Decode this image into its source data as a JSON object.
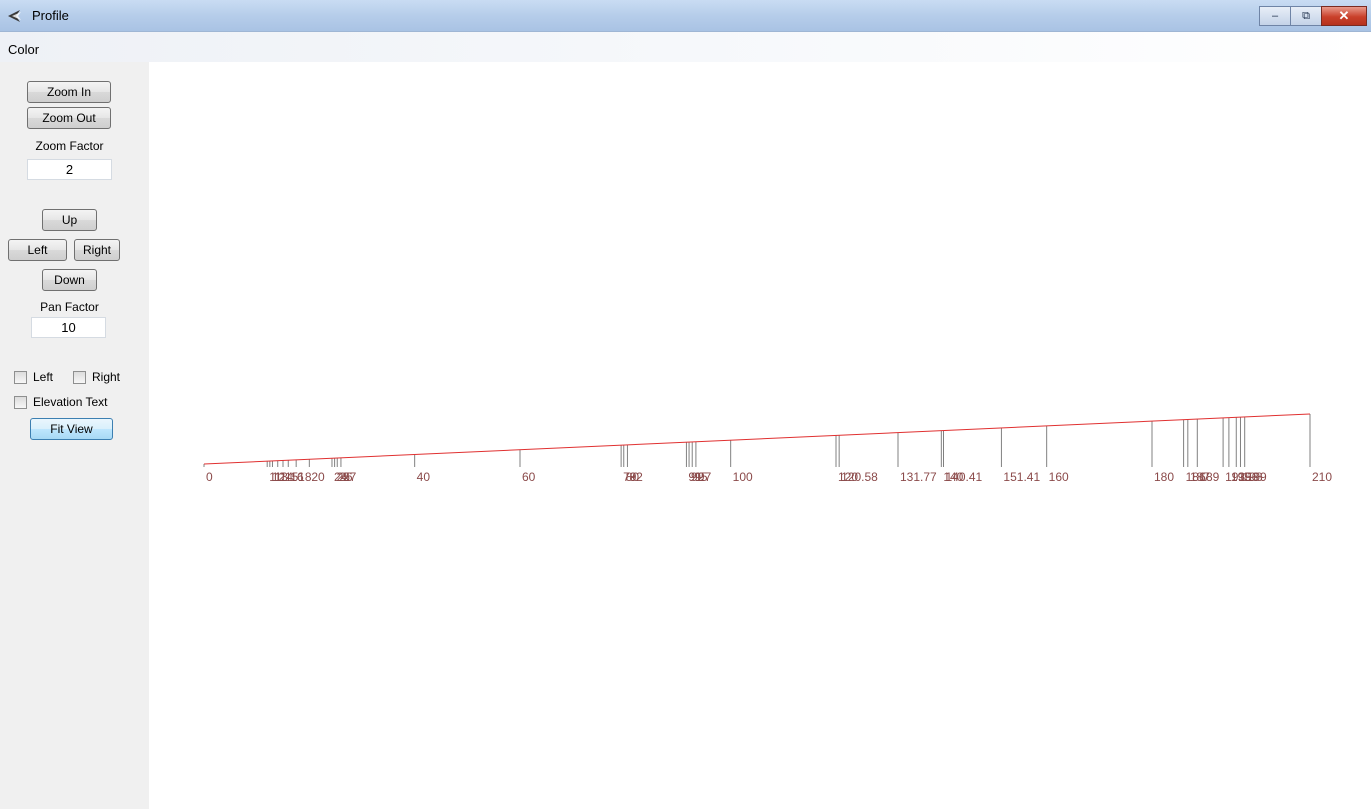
{
  "window": {
    "title": "Profile",
    "minimize": "–",
    "restore": "⧉",
    "close": "✕"
  },
  "menu": {
    "color": "Color"
  },
  "side": {
    "zoom_in": "Zoom In",
    "zoom_out": "Zoom Out",
    "zoom_factor_label": "Zoom Factor",
    "zoom_factor_value": "2",
    "up": "Up",
    "left": "Left",
    "right": "Right",
    "down": "Down",
    "pan_factor_label": "Pan Factor",
    "pan_factor_value": "10",
    "chk_left": "Left",
    "chk_right": "Right",
    "chk_elevation": "Elevation Text",
    "fit_view": "Fit View"
  },
  "colors": {
    "profile_line": "#e03030",
    "tick_line": "#808080",
    "tick_label": "#8b4a4a"
  },
  "profile": {
    "x_min": 0,
    "x_max": 210,
    "stations": [
      {
        "x": 0,
        "label": "0"
      },
      {
        "x": 12,
        "label": "11"
      },
      {
        "x": 12.5,
        "label": "12"
      },
      {
        "x": 13,
        "label": "13"
      },
      {
        "x": 14,
        "label": "14"
      },
      {
        "x": 15,
        "label": "15"
      },
      {
        "x": 16,
        "label": "16"
      },
      {
        "x": 17.5,
        "label": "18"
      },
      {
        "x": 20,
        "label": "20"
      },
      {
        "x": 24.3,
        "label": "24"
      },
      {
        "x": 24.8,
        "label": "25"
      },
      {
        "x": 25.3,
        "label": "26"
      },
      {
        "x": 26,
        "label": "27"
      },
      {
        "x": 40,
        "label": "40"
      },
      {
        "x": 60,
        "label": "60"
      },
      {
        "x": 79.2,
        "label": "79"
      },
      {
        "x": 79.7,
        "label": "80"
      },
      {
        "x": 80.4,
        "label": "82"
      },
      {
        "x": 91.6,
        "label": "91"
      },
      {
        "x": 92.1,
        "label": "92"
      },
      {
        "x": 92.7,
        "label": "95"
      },
      {
        "x": 93.4,
        "label": "97"
      },
      {
        "x": 100,
        "label": "100"
      },
      {
        "x": 120,
        "label": "120"
      },
      {
        "x": 120.6,
        "label": "120.58"
      },
      {
        "x": 131.77,
        "label": "131.77"
      },
      {
        "x": 140,
        "label": "140"
      },
      {
        "x": 140.41,
        "label": "140.41"
      },
      {
        "x": 151.41,
        "label": "151.41"
      },
      {
        "x": 160,
        "label": "160"
      },
      {
        "x": 180,
        "label": "180"
      },
      {
        "x": 186,
        "label": "186"
      },
      {
        "x": 186.8,
        "label": "187"
      },
      {
        "x": 188.6,
        "label": "189"
      },
      {
        "x": 193.5,
        "label": "193"
      },
      {
        "x": 194.6,
        "label": "195"
      },
      {
        "x": 196,
        "label": "196"
      },
      {
        "x": 196.8,
        "label": "198"
      },
      {
        "x": 197.6,
        "label": "199"
      },
      {
        "x": 210,
        "label": "210"
      }
    ]
  }
}
